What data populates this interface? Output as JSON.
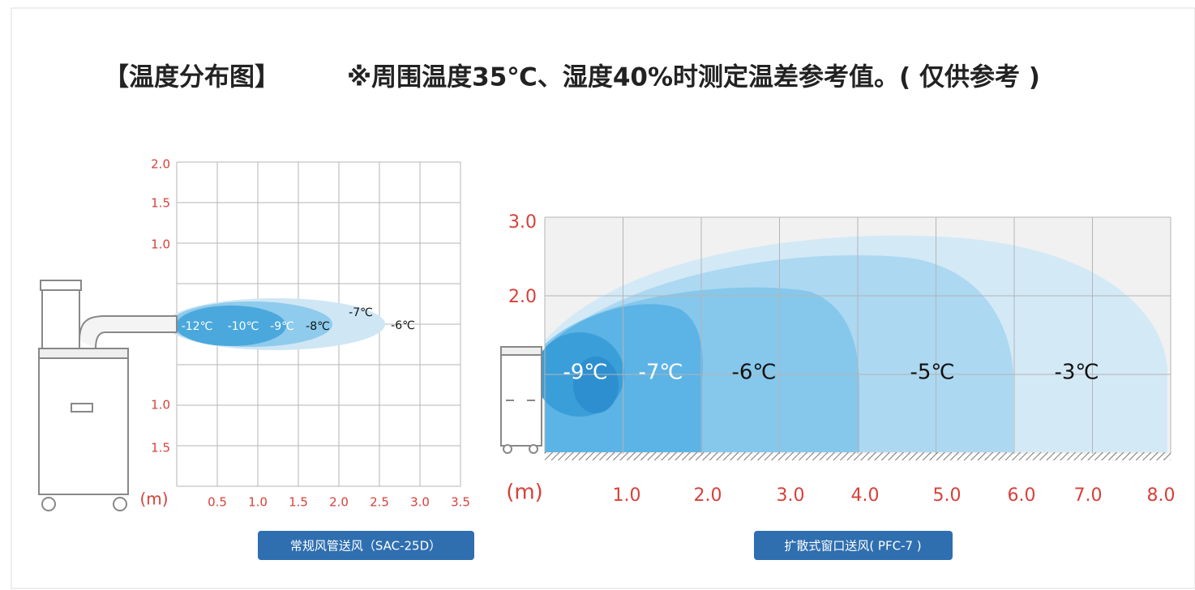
{
  "header": {
    "title": "【温度分布图】",
    "note": "※周围温度35℃、湿度40%时测定温差参考值。( 仅供参考 )"
  },
  "left_chart": {
    "y_labels": [
      "2.0",
      "1.5",
      "1.0",
      "1.0",
      "1.5"
    ],
    "x_labels": [
      "0.5",
      "1.0",
      "1.5",
      "2.0",
      "2.5",
      "3.0",
      "3.5"
    ],
    "unit": "(m)",
    "temperatures": [
      "-12℃",
      "-10℃",
      "-9℃",
      "-8℃",
      "-7℃",
      "-6℃"
    ],
    "caption": "常规风管送风（SAC-25D）"
  },
  "right_chart": {
    "y_labels": [
      "3.0",
      "2.0"
    ],
    "x_labels": [
      "1.0",
      "2.0",
      "3.0",
      "4.0",
      "5.0",
      "6.0",
      "7.0",
      "8.0"
    ],
    "unit": "(m)",
    "temperatures": [
      "-9℃",
      "-7℃",
      "-6℃",
      "-5℃",
      "-3℃"
    ],
    "caption": "扩散式窗口送风( PFC-7 )"
  }
}
